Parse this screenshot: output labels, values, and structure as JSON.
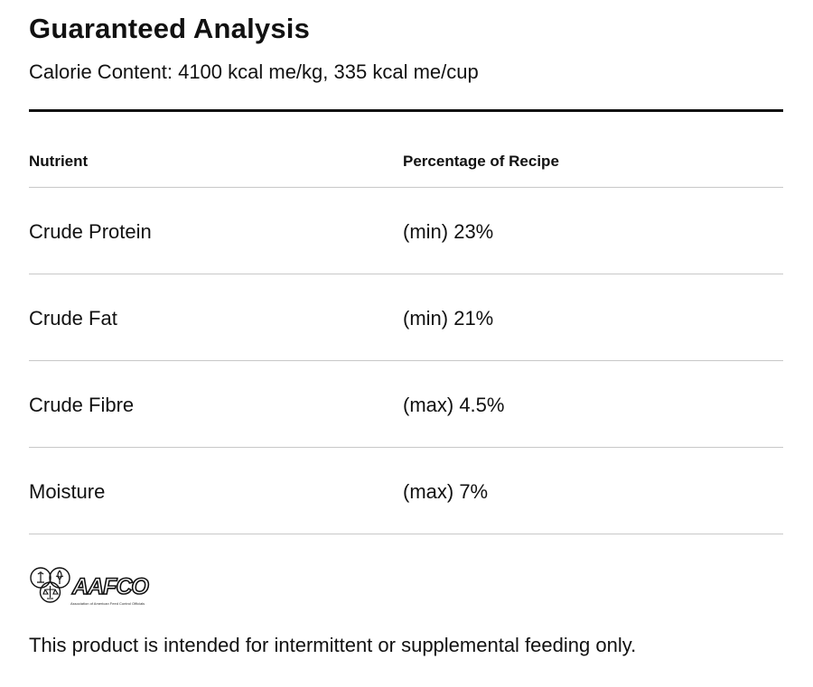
{
  "heading": {
    "title": "Guaranteed Analysis",
    "calorie_content": "Calorie Content: 4100 kcal me/kg, 335 kcal me/cup"
  },
  "table": {
    "headers": [
      "Nutrient",
      "Percentage of Recipe"
    ],
    "rows": [
      {
        "nutrient": "Crude Protein",
        "percentage": "(min) 23%"
      },
      {
        "nutrient": "Crude Fat",
        "percentage": "(min) 21%"
      },
      {
        "nutrient": "Crude Fibre",
        "percentage": "(max) 4.5%"
      },
      {
        "nutrient": "Moisture",
        "percentage": "(max) 7%"
      }
    ]
  },
  "logo": {
    "icon": "aafco-seal-icon",
    "wordmark": "AAFCO",
    "subtitle": "Association of American Feed Control Officials"
  },
  "footnote": "This product is intended for intermittent or supplemental feeding only."
}
